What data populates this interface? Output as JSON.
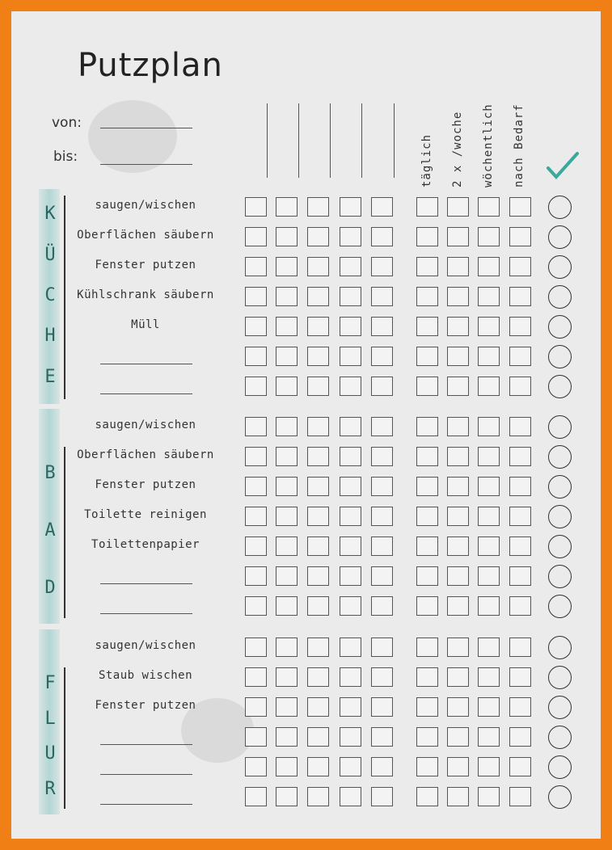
{
  "title": "Putzplan",
  "fields": {
    "from_label": "von:",
    "to_label": "bis:"
  },
  "columns": {
    "blank_day_columns": 5,
    "frequency_headers": [
      "täglich",
      "2 x /woche",
      "wöchentlich",
      "nach Bedarf"
    ],
    "done_icon": "checkmark-icon",
    "accent_color": "#3aa89a"
  },
  "colors": {
    "border": "#f07f16",
    "paper": "#ebebeb",
    "room_band": "#6ebeb9"
  },
  "sections": [
    {
      "letters": [
        "K",
        "Ü",
        "C",
        "H",
        "E"
      ],
      "tasks": [
        "saugen/wischen",
        "Oberflächen säubern",
        "Fenster putzen",
        "Kühlschrank säubern",
        "Müll",
        "",
        ""
      ]
    },
    {
      "letters": [
        "B",
        "A",
        "D"
      ],
      "tasks": [
        "saugen/wischen",
        "Oberflächen säubern",
        "Fenster putzen",
        "Toilette reinigen",
        "Toilettenpapier",
        "",
        ""
      ]
    },
    {
      "letters": [
        "F",
        "L",
        "U",
        "R"
      ],
      "tasks": [
        "saugen/wischen",
        "Staub wischen",
        "Fenster putzen",
        "",
        "",
        ""
      ]
    }
  ]
}
